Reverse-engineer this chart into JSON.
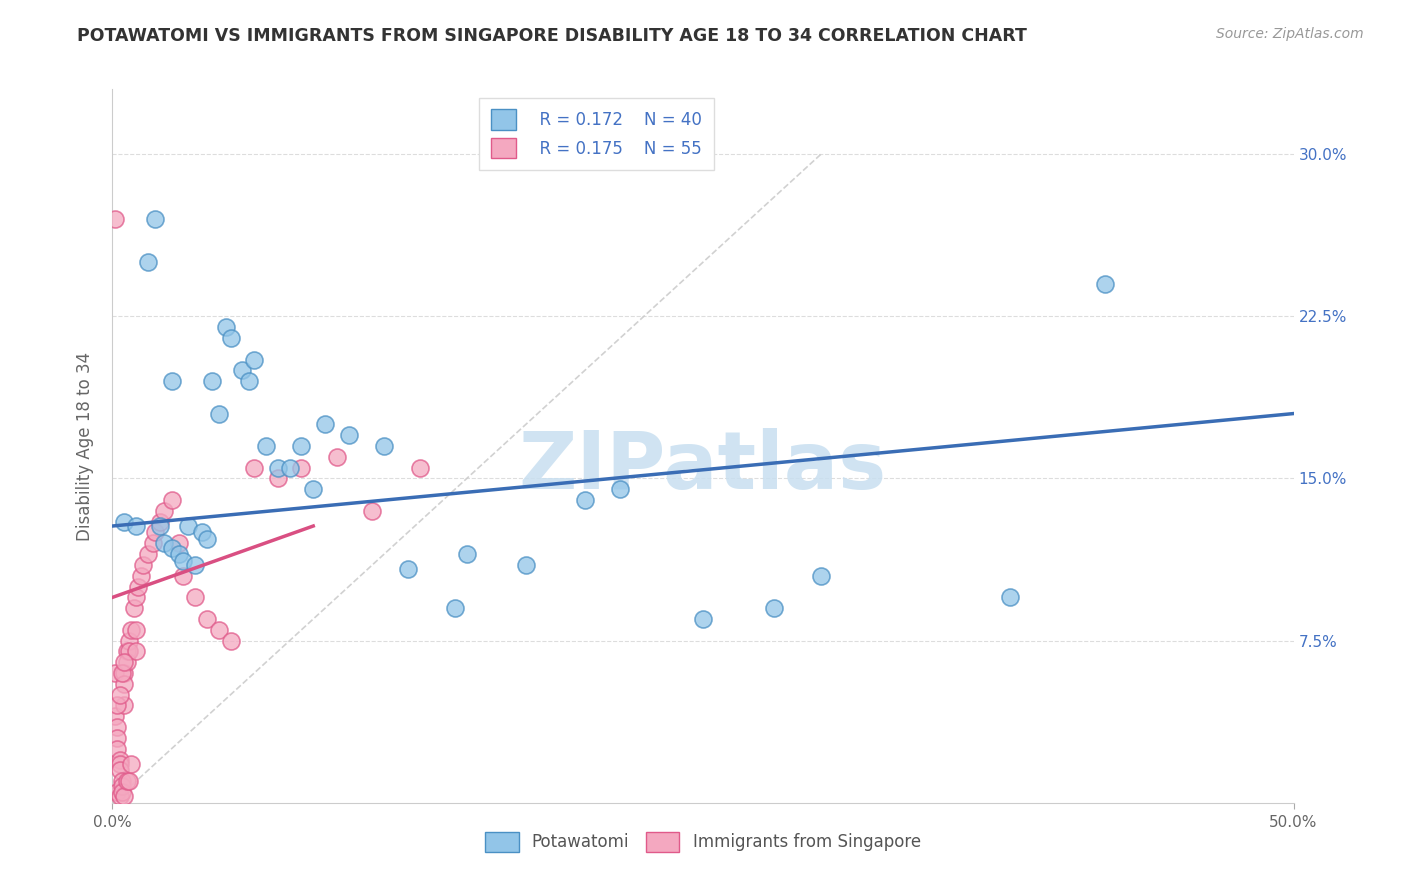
{
  "title": "POTAWATOMI VS IMMIGRANTS FROM SINGAPORE DISABILITY AGE 18 TO 34 CORRELATION CHART",
  "source": "Source: ZipAtlas.com",
  "ylabel": "Disability Age 18 to 34",
  "xlim": [
    0,
    0.5
  ],
  "ylim": [
    0,
    0.33
  ],
  "xtick_positions": [
    0.0,
    0.5
  ],
  "xticklabels": [
    "0.0%",
    "50.0%"
  ],
  "ytick_positions": [
    0.075,
    0.15,
    0.225,
    0.3
  ],
  "yticklabels_right": [
    "7.5%",
    "15.0%",
    "22.5%",
    "30.0%"
  ],
  "legend_r1": "R = 0.172",
  "legend_n1": "N = 40",
  "legend_r2": "R = 0.175",
  "legend_n2": "N = 55",
  "blue_color": "#92c5e8",
  "pink_color": "#f4a8c0",
  "blue_edge_color": "#4a90c4",
  "pink_edge_color": "#e05a8a",
  "blue_line_color": "#3a6db5",
  "pink_line_color": "#d94f82",
  "watermark": "ZIPatlas",
  "watermark_color": "#c8dff0",
  "blue_trend_x0": 0.0,
  "blue_trend_y0": 0.128,
  "blue_trend_x1": 0.5,
  "blue_trend_y1": 0.18,
  "pink_trend_x0": 0.0,
  "pink_trend_y0": 0.095,
  "pink_trend_x1": 0.085,
  "pink_trend_y1": 0.128,
  "blue_x": [
    0.005,
    0.01,
    0.015,
    0.02,
    0.022,
    0.025,
    0.028,
    0.03,
    0.032,
    0.035,
    0.038,
    0.04,
    0.042,
    0.045,
    0.048,
    0.05,
    0.055,
    0.058,
    0.06,
    0.065,
    0.07,
    0.075,
    0.08,
    0.085,
    0.09,
    0.1,
    0.115,
    0.125,
    0.145,
    0.15,
    0.175,
    0.2,
    0.215,
    0.25,
    0.28,
    0.3,
    0.38,
    0.42,
    0.025,
    0.018
  ],
  "blue_y": [
    0.13,
    0.128,
    0.25,
    0.128,
    0.12,
    0.118,
    0.115,
    0.112,
    0.128,
    0.11,
    0.125,
    0.122,
    0.195,
    0.18,
    0.22,
    0.215,
    0.2,
    0.195,
    0.205,
    0.165,
    0.155,
    0.155,
    0.165,
    0.145,
    0.175,
    0.17,
    0.165,
    0.108,
    0.09,
    0.115,
    0.11,
    0.14,
    0.145,
    0.085,
    0.09,
    0.105,
    0.095,
    0.24,
    0.195,
    0.27
  ],
  "pink_x": [
    0.001,
    0.001,
    0.001,
    0.002,
    0.002,
    0.002,
    0.002,
    0.003,
    0.003,
    0.003,
    0.003,
    0.004,
    0.004,
    0.004,
    0.005,
    0.005,
    0.005,
    0.005,
    0.006,
    0.006,
    0.006,
    0.007,
    0.007,
    0.007,
    0.008,
    0.008,
    0.009,
    0.01,
    0.01,
    0.011,
    0.012,
    0.013,
    0.015,
    0.017,
    0.018,
    0.02,
    0.022,
    0.025,
    0.028,
    0.03,
    0.035,
    0.04,
    0.045,
    0.05,
    0.06,
    0.07,
    0.08,
    0.095,
    0.11,
    0.13,
    0.002,
    0.003,
    0.004,
    0.005,
    0.01
  ],
  "pink_y": [
    0.27,
    0.06,
    0.04,
    0.035,
    0.03,
    0.025,
    0.005,
    0.02,
    0.018,
    0.015,
    0.003,
    0.01,
    0.008,
    0.005,
    0.06,
    0.055,
    0.045,
    0.003,
    0.07,
    0.065,
    0.01,
    0.075,
    0.07,
    0.01,
    0.08,
    0.018,
    0.09,
    0.095,
    0.07,
    0.1,
    0.105,
    0.11,
    0.115,
    0.12,
    0.125,
    0.13,
    0.135,
    0.14,
    0.12,
    0.105,
    0.095,
    0.085,
    0.08,
    0.075,
    0.155,
    0.15,
    0.155,
    0.16,
    0.135,
    0.155,
    0.045,
    0.05,
    0.06,
    0.065,
    0.08
  ]
}
